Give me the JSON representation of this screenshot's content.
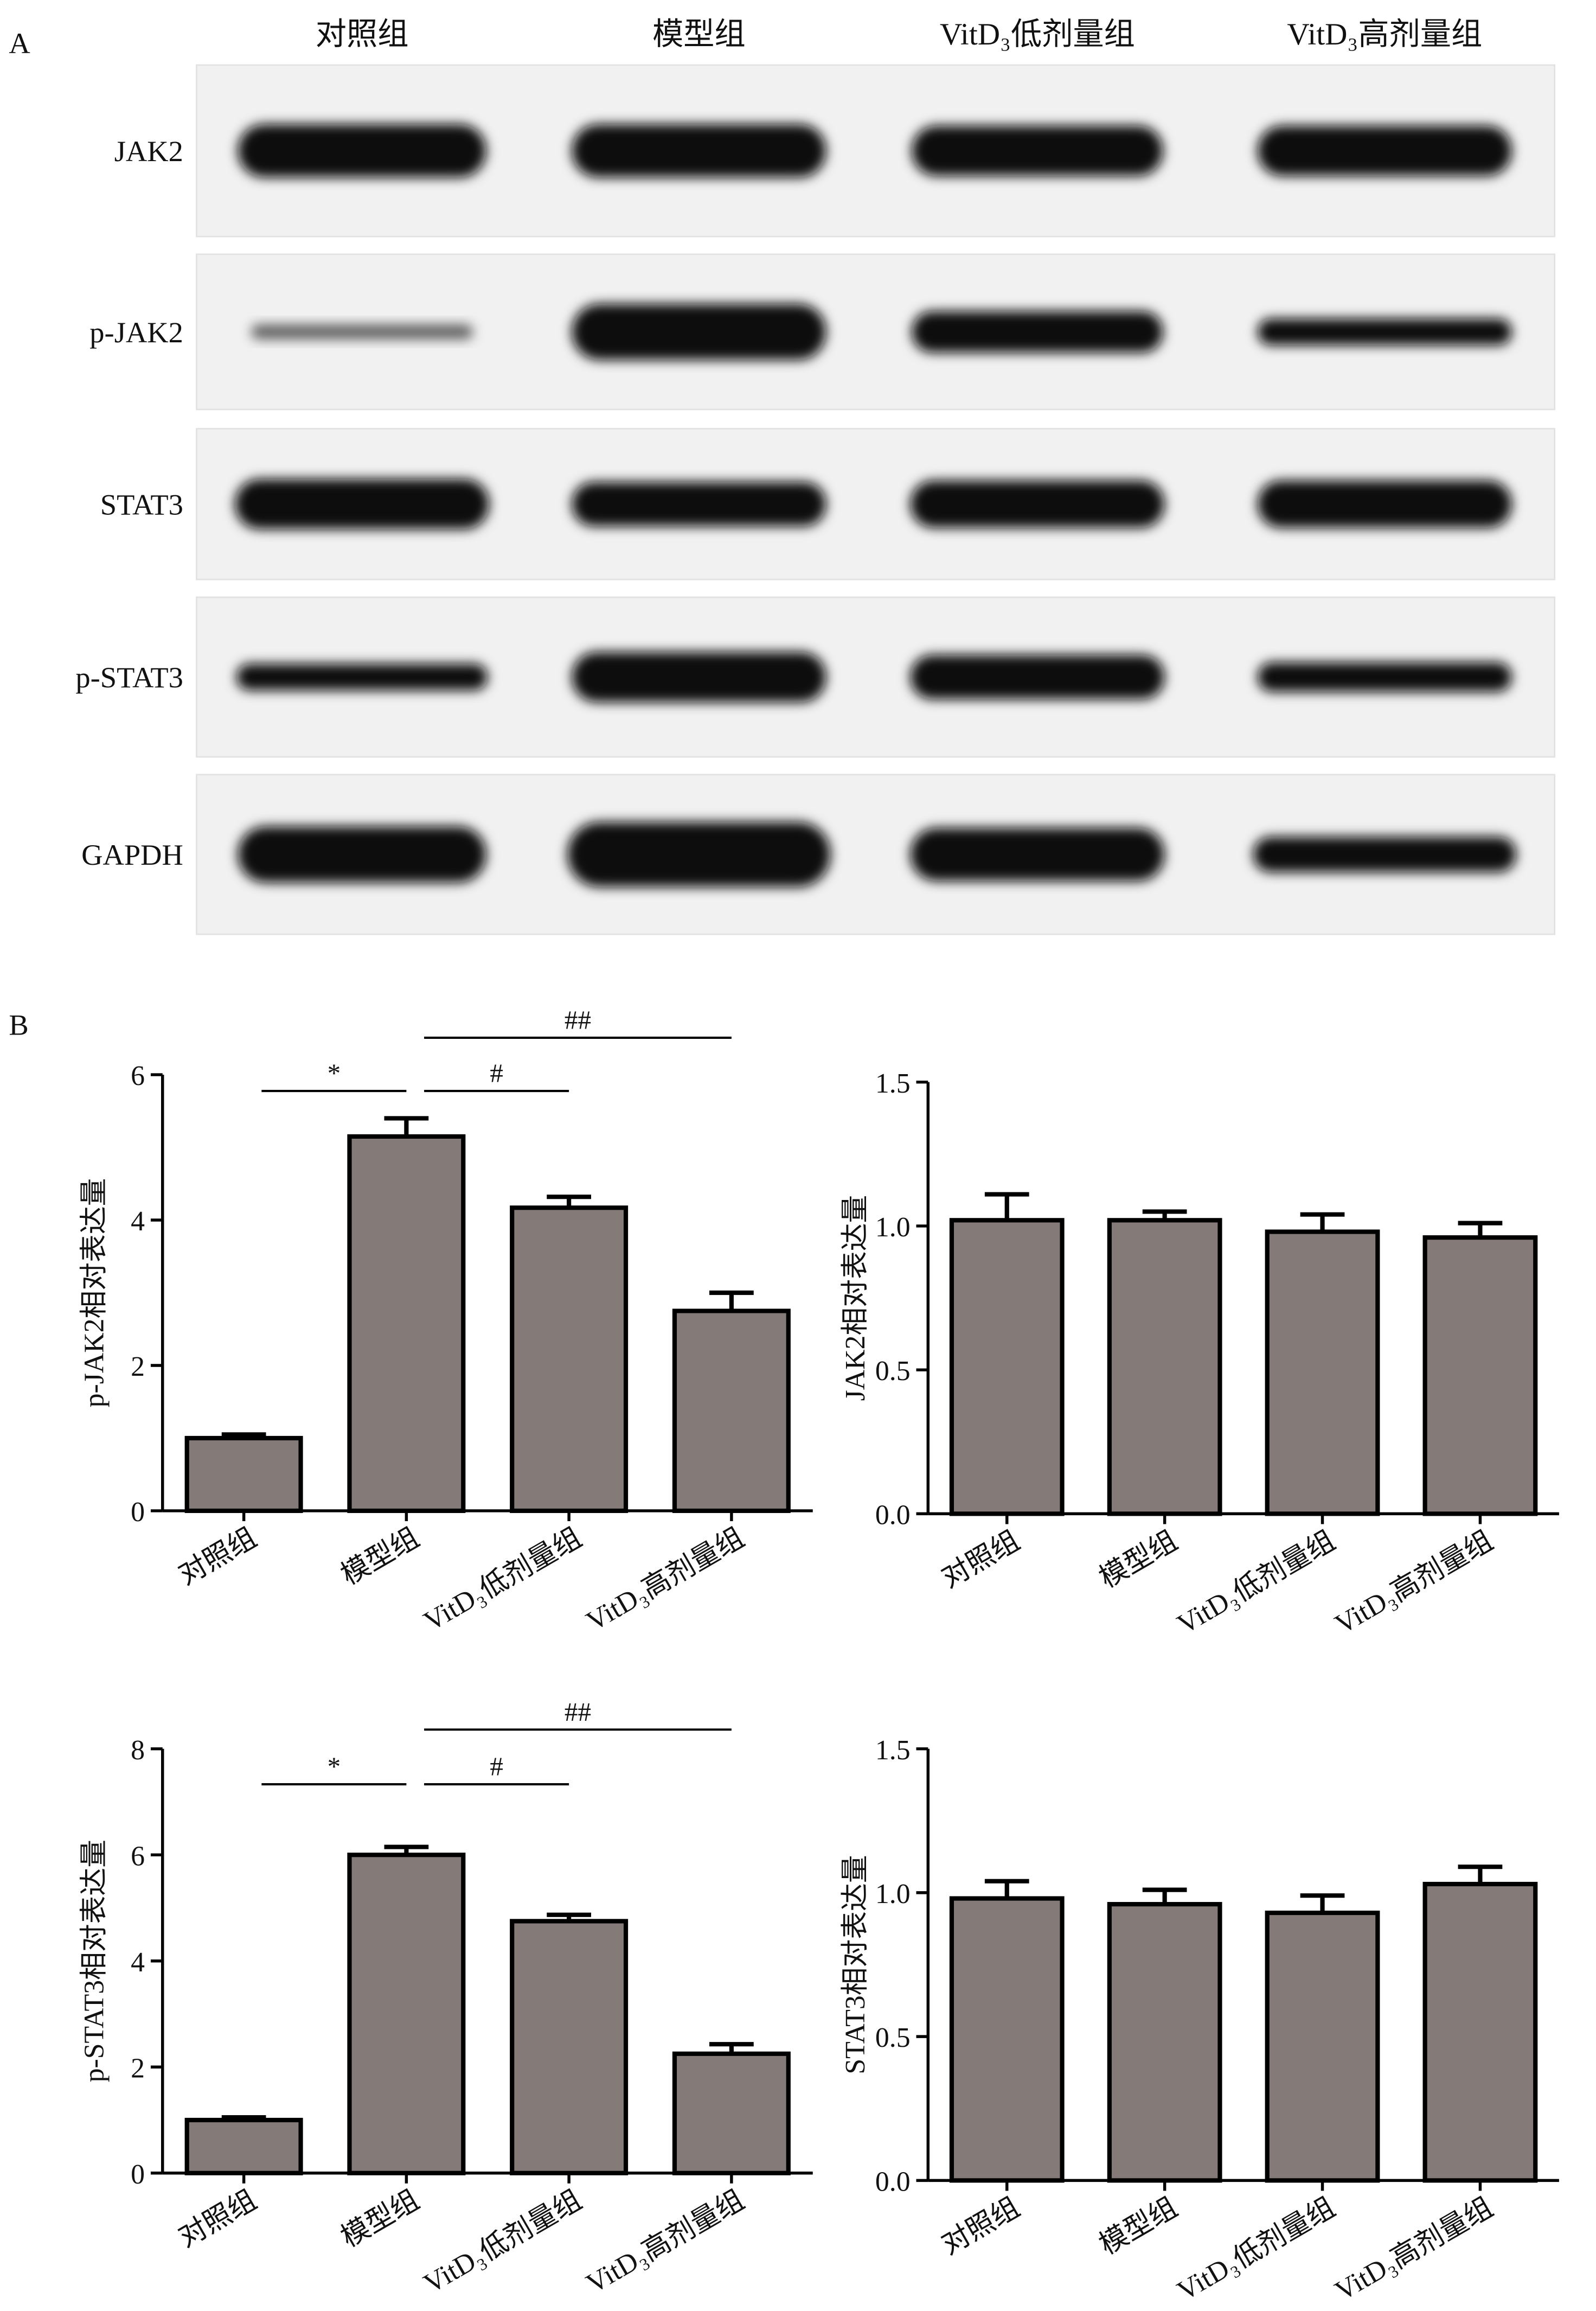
{
  "panels": {
    "a": "A",
    "b": "B"
  },
  "blot": {
    "lanes": [
      "对照组",
      "模型组",
      "VitD₃低剂量组",
      "VitD₃高剂量组"
    ],
    "rows": [
      "JAK2",
      "p-JAK2",
      "STAT3",
      "p-STAT3",
      "GAPDH"
    ]
  },
  "chart_data": [
    {
      "type": "bar",
      "ylabel": "p-JAK2相对表达量",
      "categories": [
        "对照组",
        "模型组",
        "VitD₃低剂量组",
        "VitD₃高剂量组"
      ],
      "values": [
        1.0,
        5.15,
        4.17,
        2.75
      ],
      "errors": [
        0.05,
        0.25,
        0.15,
        0.25
      ],
      "color": "#847a77",
      "ylim": [
        0,
        6
      ],
      "yticks": [
        0,
        2,
        4,
        6
      ],
      "annotations": [
        "*",
        "#",
        "##"
      ]
    },
    {
      "type": "bar",
      "ylabel": "JAK2相对表达量",
      "categories": [
        "对照组",
        "模型组",
        "VitD₃低剂量组",
        "VitD₃高剂量组"
      ],
      "values": [
        1.02,
        1.02,
        0.98,
        0.96
      ],
      "errors": [
        0.09,
        0.03,
        0.06,
        0.05
      ],
      "color": "#847a77",
      "ylim": [
        0,
        1.5
      ],
      "yticks": [
        {
          "value": 0,
          "label": "0.0"
        },
        0.5,
        {
          "value": 1,
          "label": "1.0"
        },
        1.5
      ]
    },
    {
      "type": "bar",
      "ylabel": "p-STAT3相对表达量",
      "categories": [
        "对照组",
        "模型组",
        "VitD₃低剂量组",
        "VitD₃高剂量组"
      ],
      "values": [
        1.0,
        6.0,
        4.75,
        2.25
      ],
      "errors": [
        0.05,
        0.15,
        0.12,
        0.18
      ],
      "color": "#847a77",
      "ylim": [
        0,
        8
      ],
      "yticks": [
        0,
        2,
        4,
        6,
        8
      ],
      "annotations": [
        "*",
        "#",
        "##"
      ]
    },
    {
      "type": "bar",
      "ylabel": "STAT3相对表达量",
      "categories": [
        "对照组",
        "模型组",
        "VitD₃低剂量组",
        "VitD₃高剂量组"
      ],
      "values": [
        0.98,
        0.96,
        0.93,
        1.03
      ],
      "errors": [
        0.06,
        0.05,
        0.06,
        0.06
      ],
      "color": "#847a77",
      "ylim": [
        0,
        1.5
      ],
      "yticks": [
        {
          "value": 0,
          "label": "0.0"
        },
        0.5,
        {
          "value": 1,
          "label": "1.0"
        },
        1.5
      ]
    }
  ]
}
